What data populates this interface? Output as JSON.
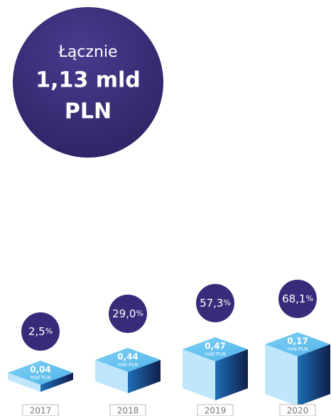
{
  "total": {
    "label": "Łącznie",
    "value": "1,13 mld",
    "unit": "PLN"
  },
  "years": [
    {
      "year": "2017",
      "share": "2,5",
      "share_unit": "%",
      "amount": "0,04",
      "amount_unit": "mld PLN"
    },
    {
      "year": "2018",
      "share": "29,0",
      "share_unit": "%",
      "amount": "0,44",
      "amount_unit": "mld PLN"
    },
    {
      "year": "2019",
      "share": "57,3",
      "share_unit": "%",
      "amount": "0,47",
      "amount_unit": "mld PLN"
    },
    {
      "year": "2020",
      "share": "68,1",
      "share_unit": "%",
      "amount": "0,17",
      "amount_unit": "mld PLN"
    }
  ]
}
